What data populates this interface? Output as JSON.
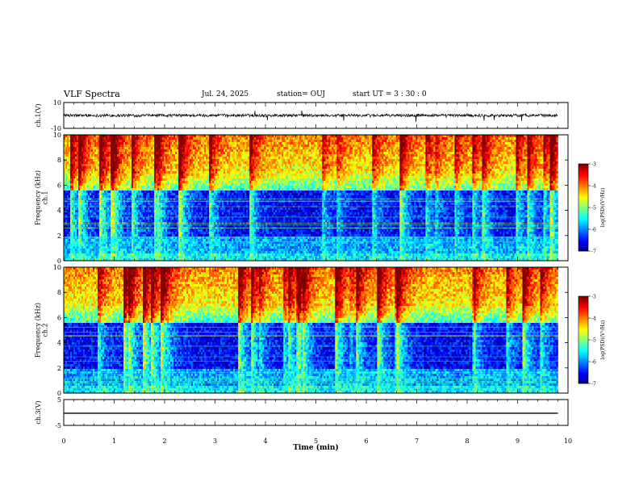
{
  "header": {
    "title": "VLF Spectra",
    "date": "Jul. 24, 2025",
    "station": "station= OUJ",
    "start": "start  UT =  3 : 30 : 0"
  },
  "chart_data": [
    {
      "type": "line",
      "name": "ch1-waveform",
      "ylabel": "ch.1(V)",
      "ylim": [
        -10,
        10
      ],
      "yticks": [
        "10",
        "-10"
      ],
      "xlim": [
        0,
        10
      ],
      "baseline": 0,
      "color": "#000000"
    },
    {
      "type": "heatmap",
      "name": "ch1-spectrogram",
      "ylabel": "ch.1\nFrequency (kHz)",
      "ylim": [
        0,
        10
      ],
      "yticks": [
        "0",
        "2",
        "4",
        "6",
        "8",
        "10"
      ],
      "xlim": [
        0,
        10
      ],
      "data_end_min": 9.8,
      "colorbar": {
        "label": "log(PSD)(V²/Hz)",
        "range": [
          -7,
          -3
        ],
        "ticks": [
          "-3",
          "-4",
          "-5",
          "-6",
          "-7"
        ]
      }
    },
    {
      "type": "heatmap",
      "name": "ch2-spectrogram",
      "ylabel": "ch.2\nFrequency (kHz)",
      "ylim": [
        0,
        10
      ],
      "yticks": [
        "0",
        "2",
        "4",
        "6",
        "8",
        "10"
      ],
      "xlim": [
        0,
        10
      ],
      "data_end_min": 9.8,
      "colorbar": {
        "label": "log(PSD)(V²/Hz)",
        "range": [
          -7,
          -3
        ],
        "ticks": [
          "-3",
          "-4",
          "-5",
          "-6",
          "-7"
        ]
      }
    },
    {
      "type": "line",
      "name": "ch3-waveform",
      "ylabel": "ch.3(V)",
      "ylim": [
        -5,
        5
      ],
      "yticks": [
        "5",
        "-5"
      ],
      "xlim": [
        0,
        10
      ],
      "baseline": -0.3,
      "color": "#000000"
    }
  ],
  "xaxis": {
    "label": "Time (min)",
    "ticks": [
      "0",
      "1",
      "2",
      "3",
      "4",
      "5",
      "6",
      "7",
      "8",
      "9",
      "10"
    ]
  }
}
